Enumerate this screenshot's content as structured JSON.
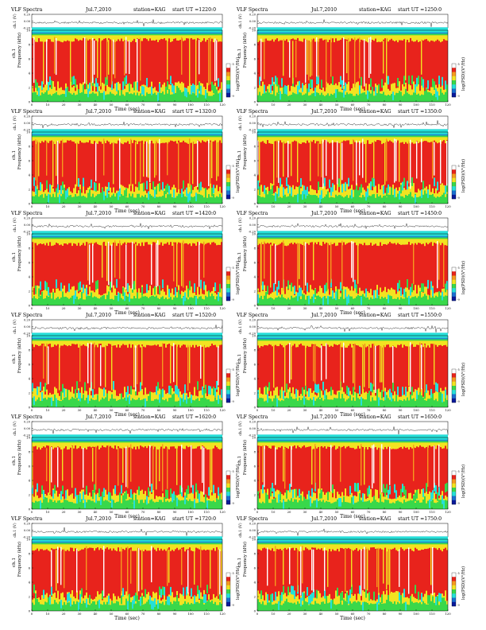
{
  "header_labels": {
    "title": "VLF Spectra",
    "date": "Jul.7,2010",
    "station": "station=KAG",
    "start": "start UT ="
  },
  "common": {
    "ch_label": "ch.1 (V)",
    "spec_ylabel": "Frequency (kHz)",
    "ch_name": "ch.1",
    "xlabel": "Time (sec)",
    "cbar_label": "log(PSD)(V²/Hz)",
    "line_yticks": [
      "0.20",
      "0.00",
      "-0.20"
    ],
    "spec_yticks": [
      "0",
      "2",
      "4",
      "6",
      "8",
      "10"
    ],
    "xticks": [
      "0",
      "10",
      "20",
      "30",
      "40",
      "50",
      "60",
      "70",
      "80",
      "90",
      "100",
      "110",
      "120"
    ],
    "cbar_ticks": [
      "-5",
      "-9"
    ]
  },
  "chart_data": [
    {
      "type": "heatmap",
      "title": "VLF Spectra",
      "date": "Jul.7,2010",
      "station": "station=KAG",
      "start_ut": "1220:0",
      "xlabel": "Time (sec)",
      "ylabel": "Frequency (kHz)",
      "xlim": [
        0,
        120
      ],
      "ylim": [
        0,
        10
      ],
      "line_ylim": [
        -0.2,
        0.2
      ],
      "colorbar_range": [
        -9,
        -5
      ]
    },
    {
      "type": "heatmap",
      "title": "VLF Spectra",
      "date": "Jul.7,2010",
      "station": "station=KAG",
      "start_ut": "1250:0",
      "xlabel": "Time (sec)",
      "ylabel": "Frequency (kHz)",
      "xlim": [
        0,
        120
      ],
      "ylim": [
        0,
        10
      ],
      "line_ylim": [
        -0.2,
        0.2
      ],
      "colorbar_range": [
        -9,
        -5
      ]
    },
    {
      "type": "heatmap",
      "title": "VLF Spectra",
      "date": "Jul.7,2010",
      "station": "station=KAG",
      "start_ut": "1320:0",
      "xlabel": "Time (sec)",
      "ylabel": "Frequency (kHz)",
      "xlim": [
        0,
        120
      ],
      "ylim": [
        0,
        10
      ],
      "line_ylim": [
        -0.2,
        0.2
      ],
      "colorbar_range": [
        -9,
        -5
      ]
    },
    {
      "type": "heatmap",
      "title": "VLF Spectra",
      "date": "Jul.7,2010",
      "station": "station=KAG",
      "start_ut": "1350:0",
      "xlabel": "Time (sec)",
      "ylabel": "Frequency (kHz)",
      "xlim": [
        0,
        120
      ],
      "ylim": [
        0,
        10
      ],
      "line_ylim": [
        -0.2,
        0.2
      ],
      "colorbar_range": [
        -9,
        -5
      ]
    },
    {
      "type": "heatmap",
      "title": "VLF Spectra",
      "date": "Jul.7,2010",
      "station": "station=KAG",
      "start_ut": "1420:0",
      "xlabel": "Time (sec)",
      "ylabel": "Frequency (kHz)",
      "xlim": [
        0,
        120
      ],
      "ylim": [
        0,
        10
      ],
      "line_ylim": [
        -0.2,
        0.2
      ],
      "colorbar_range": [
        -9,
        -5
      ]
    },
    {
      "type": "heatmap",
      "title": "VLF Spectra",
      "date": "Jul.7,2010",
      "station": "station=KAG",
      "start_ut": "1450:0",
      "xlabel": "Time (sec)",
      "ylabel": "Frequency (kHz)",
      "xlim": [
        0,
        120
      ],
      "ylim": [
        0,
        10
      ],
      "line_ylim": [
        -0.2,
        0.2
      ],
      "colorbar_range": [
        -9,
        -5
      ]
    },
    {
      "type": "heatmap",
      "title": "VLF Spectra",
      "date": "Jul.7,2010",
      "station": "station=KAG",
      "start_ut": "1520:0",
      "xlabel": "Time (sec)",
      "ylabel": "Frequency (kHz)",
      "xlim": [
        0,
        120
      ],
      "ylim": [
        0,
        10
      ],
      "line_ylim": [
        -0.2,
        0.2
      ],
      "colorbar_range": [
        -9,
        -5
      ]
    },
    {
      "type": "heatmap",
      "title": "VLF Spectra",
      "date": "Jul.7,2010",
      "station": "station=KAG",
      "start_ut": "1550:0",
      "xlabel": "Time (sec)",
      "ylabel": "Frequency (kHz)",
      "xlim": [
        0,
        120
      ],
      "ylim": [
        0,
        10
      ],
      "line_ylim": [
        -0.2,
        0.2
      ],
      "colorbar_range": [
        -9,
        -5
      ]
    },
    {
      "type": "heatmap",
      "title": "VLF Spectra",
      "date": "Jul.7,2010",
      "station": "station=KAG",
      "start_ut": "1620:0",
      "xlabel": "Time (sec)",
      "ylabel": "Frequency (kHz)",
      "xlim": [
        0,
        120
      ],
      "ylim": [
        0,
        10
      ],
      "line_ylim": [
        -0.2,
        0.2
      ],
      "colorbar_range": [
        -9,
        -5
      ]
    },
    {
      "type": "heatmap",
      "title": "VLF Spectra",
      "date": "Jul.7,2010",
      "station": "station=KAG",
      "start_ut": "1650:0",
      "xlabel": "Time (sec)",
      "ylabel": "Frequency (kHz)",
      "xlim": [
        0,
        120
      ],
      "ylim": [
        0,
        10
      ],
      "line_ylim": [
        -0.2,
        0.2
      ],
      "colorbar_range": [
        -9,
        -5
      ]
    },
    {
      "type": "heatmap",
      "title": "VLF Spectra",
      "date": "Jul.7,2010",
      "station": "station=KAG",
      "start_ut": "1720:0",
      "xlabel": "Time (sec)",
      "ylabel": "Frequency (kHz)",
      "xlim": [
        0,
        120
      ],
      "ylim": [
        0,
        10
      ],
      "line_ylim": [
        -0.2,
        0.2
      ],
      "colorbar_range": [
        -9,
        -5
      ]
    },
    {
      "type": "heatmap",
      "title": "VLF Spectra",
      "date": "Jul.7,2010",
      "station": "station=KAG",
      "start_ut": "1750:0",
      "xlabel": "Time (sec)",
      "ylabel": "Frequency (kHz)",
      "xlim": [
        0,
        120
      ],
      "ylim": [
        0,
        10
      ],
      "line_ylim": [
        -0.2,
        0.2
      ],
      "colorbar_range": [
        -9,
        -5
      ]
    }
  ],
  "colors": {
    "spectrogram": [
      "#1a8fd0",
      "#26e0d8",
      "#39d84a",
      "#9be03a",
      "#f2e321",
      "#f59a1f",
      "#e8231c",
      "#ffffff"
    ],
    "colorbar": [
      "#ffffff",
      "#e8231c",
      "#f59a1f",
      "#f2e321",
      "#39d84a",
      "#26e0d8",
      "#1a6fd0",
      "#0a1a9a"
    ],
    "axis": "#000000"
  }
}
